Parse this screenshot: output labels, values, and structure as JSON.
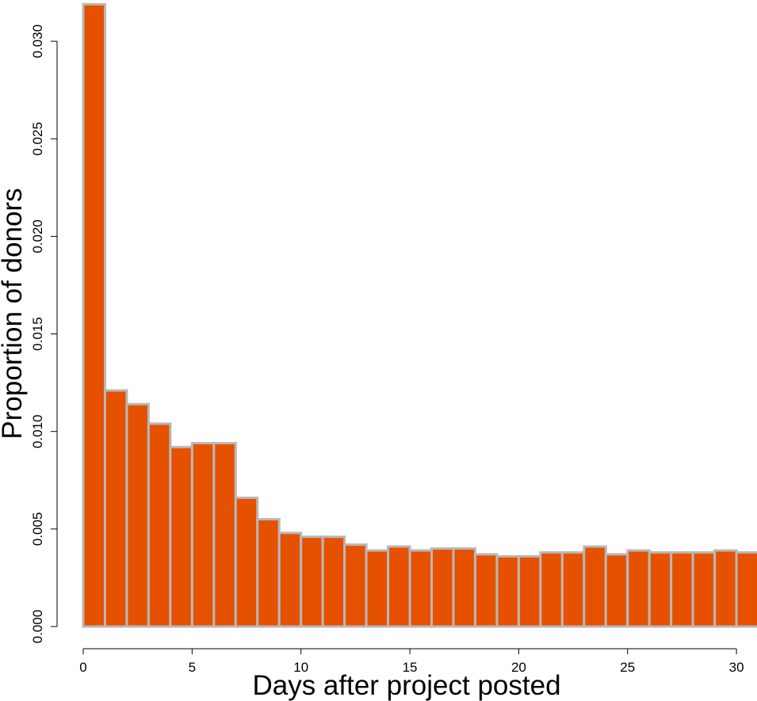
{
  "chart_data": {
    "type": "bar",
    "xlabel": "Days after project posted",
    "ylabel": "Proportion of donors",
    "bin_width": 1,
    "x_start": 0,
    "values": [
      0.0319,
      0.0121,
      0.0114,
      0.0104,
      0.0092,
      0.0094,
      0.0094,
      0.0066,
      0.0055,
      0.0048,
      0.0046,
      0.0046,
      0.0042,
      0.0039,
      0.0041,
      0.0039,
      0.004,
      0.004,
      0.0037,
      0.0036,
      0.0036,
      0.0038,
      0.0038,
      0.0041,
      0.0037,
      0.0039,
      0.0038,
      0.0038,
      0.0038,
      0.0039,
      0.0038
    ],
    "xlim": [
      0,
      31
    ],
    "ylim": [
      0,
      0.032
    ],
    "x_ticks": [
      "0",
      "5",
      "10",
      "15",
      "20",
      "25",
      "30"
    ],
    "y_ticks": [
      "0.000",
      "0.005",
      "0.010",
      "0.015",
      "0.020",
      "0.025",
      "0.030"
    ],
    "grid": false,
    "legend": "none",
    "colors": {
      "bar_fill": "#e65100",
      "bar_border": "#b8b8b8",
      "axis": "#000000"
    }
  }
}
